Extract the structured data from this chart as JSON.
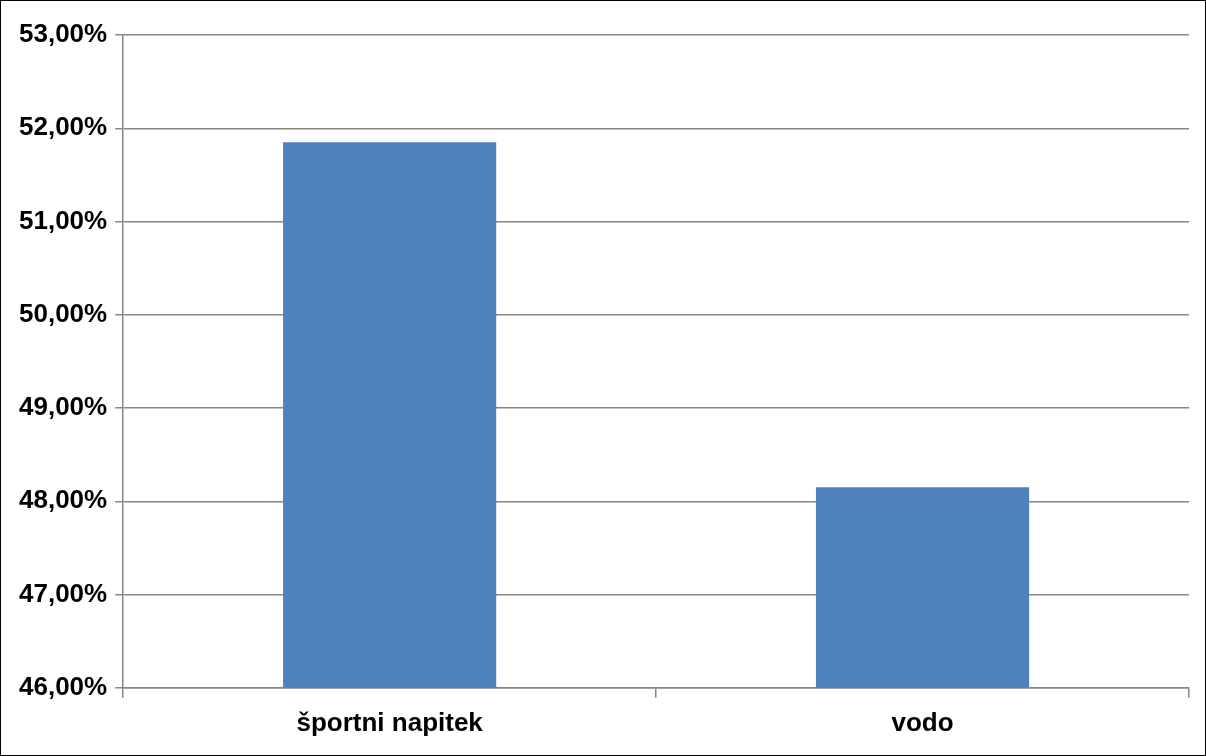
{
  "chart_data": {
    "type": "bar",
    "categories": [
      "športni napitek",
      "vodo"
    ],
    "values": [
      51.85,
      48.15
    ],
    "color": "#4f81bd",
    "ylim": [
      46,
      53
    ],
    "yticks": [
      {
        "value": 46,
        "label": "46,00%"
      },
      {
        "value": 47,
        "label": "47,00%"
      },
      {
        "value": 48,
        "label": "48,00%"
      },
      {
        "value": 49,
        "label": "49,00%"
      },
      {
        "value": 50,
        "label": "50,00%"
      },
      {
        "value": 51,
        "label": "51,00%"
      },
      {
        "value": 52,
        "label": "52,00%"
      },
      {
        "value": 53,
        "label": "53,00%"
      }
    ],
    "grid": "y",
    "legend": false
  }
}
